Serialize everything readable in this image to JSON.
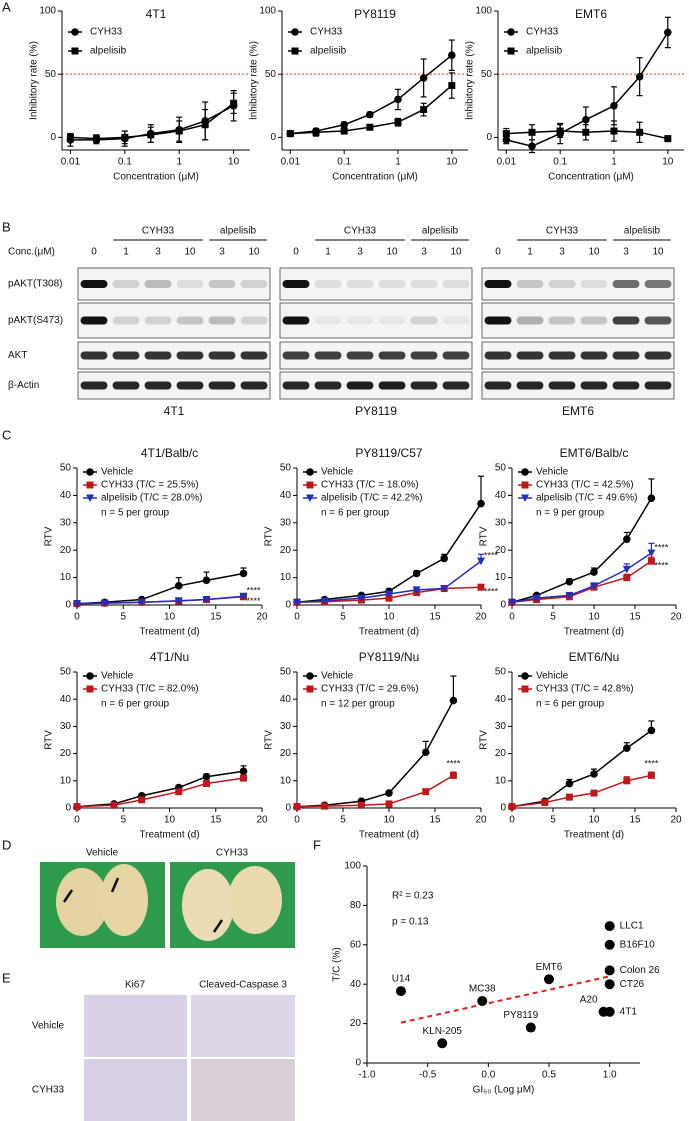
{
  "panel_labels": [
    "A",
    "B",
    "C",
    "D",
    "E",
    "F"
  ],
  "chart_data": [
    {
      "type": "line",
      "title": "4T1",
      "xscale": "log",
      "x": [
        0.01,
        0.03,
        0.1,
        0.3,
        1,
        3,
        10
      ],
      "xlim": [
        0.007,
        20
      ],
      "xticks": [
        0.01,
        0.1,
        1,
        10
      ],
      "ylim": [
        -10,
        100
      ],
      "yticks": [
        0,
        50,
        100
      ],
      "xlabel": "Concentration (μM)",
      "ylabel": "Inhibitory rate (%)",
      "reference_line": 50,
      "reference_color": "#e8392f",
      "error_direction": "both",
      "series": [
        {
          "name": "CYH33",
          "color": "#000000",
          "marker": "circle",
          "values": [
            -2,
            -2,
            -1,
            3,
            6,
            13,
            25
          ],
          "errors": [
            5,
            3,
            6,
            7,
            10,
            15,
            12
          ]
        },
        {
          "name": "alpelisib",
          "color": "#000000",
          "marker": "square",
          "values": [
            0,
            -1,
            0,
            2,
            5,
            10,
            27
          ],
          "errors": [
            3,
            3,
            5,
            6,
            8,
            12,
            8
          ]
        }
      ]
    },
    {
      "type": "line",
      "title": "PY8119",
      "xscale": "log",
      "x": [
        0.01,
        0.03,
        0.1,
        0.3,
        1,
        3,
        10
      ],
      "xlim": [
        0.007,
        20
      ],
      "xticks": [
        0.01,
        0.1,
        1,
        10
      ],
      "ylim": [
        -10,
        100
      ],
      "yticks": [
        0,
        50,
        100
      ],
      "xlabel": "Concentration (μM)",
      "ylabel": "Inhibitory rate (%)",
      "reference_line": 50,
      "reference_color": "#e8392f",
      "error_direction": "both",
      "series": [
        {
          "name": "CYH33",
          "color": "#000000",
          "marker": "circle",
          "values": [
            3,
            5,
            10,
            18,
            30,
            47,
            65
          ],
          "errors": [
            2,
            2,
            2,
            2,
            8,
            15,
            12
          ]
        },
        {
          "name": "alpelisib",
          "color": "#000000",
          "marker": "square",
          "values": [
            3,
            4,
            5,
            8,
            12,
            22,
            41
          ],
          "errors": [
            2,
            3,
            2,
            2,
            3,
            5,
            10
          ]
        }
      ]
    },
    {
      "type": "line",
      "title": "EMT6",
      "xscale": "log",
      "x": [
        0.01,
        0.03,
        0.1,
        0.3,
        1,
        3,
        10
      ],
      "xlim": [
        0.007,
        20
      ],
      "xticks": [
        0.01,
        0.1,
        1,
        10
      ],
      "ylim": [
        -10,
        100
      ],
      "yticks": [
        0,
        50,
        100
      ],
      "xlabel": "Concentration (μM)",
      "ylabel": "Inhibitory rate (%)",
      "reference_line": 50,
      "reference_color": "#e8392f",
      "error_direction": "both",
      "series": [
        {
          "name": "CYH33",
          "color": "#000000",
          "marker": "circle",
          "values": [
            -2,
            -7,
            3,
            14,
            25,
            48,
            83
          ],
          "errors": [
            3,
            5,
            8,
            10,
            15,
            15,
            12
          ]
        },
        {
          "name": "alpelisib",
          "color": "#000000",
          "marker": "square",
          "values": [
            3,
            4,
            5,
            4,
            5,
            4,
            -1
          ],
          "errors": [
            4,
            6,
            5,
            6,
            8,
            8,
            2
          ]
        }
      ]
    },
    {
      "type": "line",
      "title": "4T1/Balb/c",
      "x": [
        0,
        3,
        7,
        11,
        14,
        18
      ],
      "xlim": [
        0,
        20
      ],
      "xticks": [
        0,
        5,
        10,
        15,
        20
      ],
      "ylim": [
        0,
        50
      ],
      "yticks": [
        0,
        10,
        20,
        30,
        40,
        50
      ],
      "xlabel": "Treatment (d)",
      "ylabel": "RTV",
      "error_direction": "up",
      "note": "n = 5 per group",
      "series": [
        {
          "name": "Vehicle",
          "color": "#000000",
          "marker": "circle",
          "values": [
            0.5,
            1,
            2,
            7,
            9,
            11.5
          ],
          "errors": [
            0,
            0.3,
            0.5,
            3,
            3,
            2
          ]
        },
        {
          "name": "CYH33 (T/C = 25.5%)",
          "color": "#c0171c",
          "marker": "square",
          "values": [
            0.5,
            0.7,
            1,
            1.5,
            2,
            3
          ],
          "errors": [
            0,
            0.2,
            0.3,
            0.3,
            0.5,
            0.5
          ],
          "significance": "****"
        },
        {
          "name": "alpelisib (T/C = 28.0%)",
          "color": "#1f2fbf",
          "marker": "triangle-down",
          "values": [
            0.5,
            0.7,
            1,
            1.5,
            2,
            3.2
          ],
          "errors": [
            0,
            0.2,
            0.3,
            0.4,
            0.5,
            0.8
          ],
          "significance": "****"
        }
      ]
    },
    {
      "type": "line",
      "title": "PY8119/C57",
      "x": [
        0,
        3,
        7,
        10,
        13,
        16,
        20
      ],
      "xlim": [
        0,
        20
      ],
      "xticks": [
        0,
        5,
        10,
        15,
        20
      ],
      "ylim": [
        0,
        50
      ],
      "yticks": [
        0,
        10,
        20,
        30,
        40,
        50
      ],
      "xlabel": "Treatment (d)",
      "ylabel": "RTV",
      "error_direction": "up",
      "note": "n = 6 per group",
      "series": [
        {
          "name": "Vehicle",
          "color": "#000000",
          "marker": "circle",
          "values": [
            1,
            2,
            3.5,
            5,
            11.5,
            17,
            37
          ],
          "errors": [
            0,
            0.3,
            0.5,
            0.8,
            1,
            1.5,
            10
          ]
        },
        {
          "name": "CYH33 (T/C = 18.0%)",
          "color": "#c0171c",
          "marker": "square",
          "values": [
            1,
            1.2,
            1.8,
            2.5,
            4.5,
            6,
            6.5
          ],
          "errors": [
            0,
            0.2,
            0.3,
            0.4,
            0.5,
            0.5,
            0.8
          ],
          "significance": "****"
        },
        {
          "name": "alpelisib (T/C = 42.2%)",
          "color": "#1f2fbf",
          "marker": "triangle-down",
          "values": [
            1,
            1.5,
            2.5,
            4,
            5.5,
            6,
            16
          ],
          "errors": [
            0,
            0.2,
            0.3,
            0.5,
            0.7,
            1,
            2.5
          ],
          "significance": "****"
        }
      ]
    },
    {
      "type": "line",
      "title": "EMT6/Balb/c",
      "x": [
        0,
        3,
        7,
        10,
        14,
        17
      ],
      "xlim": [
        0,
        20
      ],
      "xticks": [
        0,
        5,
        10,
        15,
        20
      ],
      "ylim": [
        0,
        50
      ],
      "yticks": [
        0,
        10,
        20,
        30,
        40,
        50
      ],
      "xlabel": "Treatment (d)",
      "ylabel": "RTV",
      "error_direction": "up",
      "note": "n = 9 per group",
      "series": [
        {
          "name": "Vehicle",
          "color": "#000000",
          "marker": "circle",
          "values": [
            1,
            3.5,
            8.5,
            12,
            24,
            39
          ],
          "errors": [
            0,
            0.5,
            1,
            1.5,
            2.5,
            7
          ]
        },
        {
          "name": "CYH33 (T/C = 42.5%)",
          "color": "#c0171c",
          "marker": "square",
          "values": [
            1,
            2,
            3,
            6.5,
            10,
            16
          ],
          "errors": [
            0,
            0.3,
            0.5,
            0.8,
            1.2,
            1.5
          ],
          "significance": "****"
        },
        {
          "name": "alpelisib (T/C = 49.6%)",
          "color": "#1f2fbf",
          "marker": "triangle-down",
          "values": [
            1,
            2.5,
            3.5,
            7,
            13,
            19
          ],
          "errors": [
            0,
            0.3,
            0.5,
            1,
            2,
            3.5
          ],
          "significance": "****"
        }
      ]
    },
    {
      "type": "line",
      "title": "4T1/Nu",
      "x": [
        0,
        4,
        7,
        11,
        14,
        18
      ],
      "xlim": [
        0,
        20
      ],
      "xticks": [
        0,
        5,
        10,
        15,
        20
      ],
      "ylim": [
        0,
        50
      ],
      "yticks": [
        0,
        10,
        20,
        30,
        40,
        50
      ],
      "xlabel": "Treatment (d)",
      "ylabel": "RTV",
      "error_direction": "up",
      "note": "n = 6 per group",
      "series": [
        {
          "name": "Vehicle",
          "color": "#000000",
          "marker": "circle",
          "values": [
            0.5,
            1.5,
            4.5,
            7.5,
            11.5,
            13.5
          ],
          "errors": [
            0,
            0.3,
            0.5,
            0.8,
            1,
            2
          ]
        },
        {
          "name": "CYH33 (T/C = 82.0%)",
          "color": "#c0171c",
          "marker": "square",
          "values": [
            0.5,
            1,
            3,
            6,
            9,
            11
          ],
          "errors": [
            0,
            0.2,
            0.4,
            0.6,
            0.8,
            1
          ]
        }
      ]
    },
    {
      "type": "line",
      "title": "PY8119/Nu",
      "x": [
        0,
        3,
        7,
        10,
        14,
        17
      ],
      "xlim": [
        0,
        20
      ],
      "xticks": [
        0,
        5,
        10,
        15,
        20
      ],
      "ylim": [
        0,
        50
      ],
      "yticks": [
        0,
        10,
        20,
        30,
        40,
        50
      ],
      "xlabel": "Treatment (d)",
      "ylabel": "RTV",
      "error_direction": "up",
      "note": "n = 12 per group",
      "series": [
        {
          "name": "Vehicle",
          "color": "#000000",
          "marker": "circle",
          "values": [
            0.5,
            1,
            2.5,
            5.5,
            20.5,
            39.5
          ],
          "errors": [
            0,
            0.2,
            0.4,
            0.8,
            4,
            9
          ]
        },
        {
          "name": "CYH33 (T/C = 29.6%)",
          "color": "#c0171c",
          "marker": "square",
          "values": [
            0.5,
            0.7,
            1,
            1.5,
            6,
            12
          ],
          "errors": [
            0,
            0.1,
            0.2,
            0.3,
            0.6,
            1.2
          ],
          "significance": "****"
        }
      ]
    },
    {
      "type": "line",
      "title": "EMT6/Nu",
      "x": [
        0,
        4,
        7,
        10,
        14,
        17
      ],
      "xlim": [
        0,
        20
      ],
      "xticks": [
        0,
        5,
        10,
        15,
        20
      ],
      "ylim": [
        0,
        50
      ],
      "yticks": [
        0,
        10,
        20,
        30,
        40,
        50
      ],
      "xlabel": "Treatment (d)",
      "ylabel": "RTV",
      "error_direction": "up",
      "note": "n = 6 per group",
      "series": [
        {
          "name": "Vehicle",
          "color": "#000000",
          "marker": "circle",
          "values": [
            0.5,
            2.5,
            9,
            12.5,
            22,
            28.5
          ],
          "errors": [
            0,
            0.5,
            1.5,
            1.8,
            2,
            3.5
          ]
        },
        {
          "name": "CYH33 (T/C = 42.8%)",
          "color": "#c0171c",
          "marker": "square",
          "values": [
            0.5,
            2,
            4,
            5.5,
            10,
            12
          ],
          "errors": [
            0,
            0.3,
            0.5,
            0.6,
            1.5,
            1.2
          ],
          "significance": "****"
        }
      ]
    },
    {
      "type": "scatter",
      "x": [
        -0.72,
        -0.38,
        -0.05,
        0.35,
        0.5,
        0.95,
        1.0,
        1.0,
        1.0,
        1.0,
        1.0
      ],
      "values": [
        36.5,
        10,
        31.5,
        18,
        42.5,
        26,
        26,
        69.5,
        60,
        47,
        40
      ],
      "labels": [
        "U14",
        "KLN-205",
        "MC38",
        "PY8119",
        "EMT6",
        "A20",
        "4T1",
        "LLC1",
        "B16F10",
        "Colon 26",
        "CT26"
      ],
      "color": "#000000",
      "xlim": [
        -1,
        1.25
      ],
      "xticks": [
        {
          "value": -1,
          "label": "-1.0"
        },
        {
          "value": -0.5,
          "label": "-0.5"
        },
        {
          "value": 0,
          "label": "0.0"
        },
        {
          "value": 0.5,
          "label": "0.5"
        },
        {
          "value": 1,
          "label": "1.0"
        }
      ],
      "ylim": [
        0,
        100
      ],
      "yticks": [
        0,
        20,
        40,
        60,
        80,
        100
      ],
      "xlabel": "GI₅₀ (Log μM)",
      "ylabel": "T/C (%)",
      "annotations": [
        "R² = 0.23",
        "p = 0.13"
      ],
      "trendline": {
        "x": [
          -0.72,
          1.0
        ],
        "values": [
          20.5,
          44
        ],
        "color": "#e02020"
      }
    }
  ],
  "blot": {
    "conc_label": "Conc.(μM)",
    "treatments": [
      "CYH33",
      "alpelisib"
    ],
    "doses": [
      "0",
      "1",
      "3",
      "10",
      "3",
      "10"
    ],
    "rows": [
      "pAKT(T308)",
      "pAKT(S473)",
      "AKT",
      "β-Actin"
    ],
    "cells": [
      "4T1",
      "PY8119",
      "EMT6"
    ],
    "intensity": [
      [
        [
          1,
          0.15,
          0.25,
          0.1,
          0.2,
          0.15
        ],
        [
          1,
          0.15,
          0.15,
          0.2,
          0.25,
          0.15
        ],
        [
          0.85,
          0.85,
          0.85,
          0.85,
          0.85,
          0.85
        ],
        [
          0.9,
          0.9,
          0.9,
          0.9,
          0.9,
          0.9
        ]
      ],
      [
        [
          1,
          0.1,
          0.1,
          0.1,
          0.1,
          0.1
        ],
        [
          1,
          0.05,
          0.05,
          0.05,
          0.15,
          0.05
        ],
        [
          0.8,
          0.8,
          0.8,
          0.8,
          0.8,
          0.8
        ],
        [
          0.9,
          0.9,
          0.95,
          0.95,
          0.9,
          0.9
        ]
      ],
      [
        [
          1,
          0.2,
          0.15,
          0.1,
          0.6,
          0.55
        ],
        [
          1,
          0.3,
          0.2,
          0.2,
          0.8,
          0.7
        ],
        [
          0.85,
          0.85,
          0.85,
          0.85,
          0.85,
          0.85
        ],
        [
          0.9,
          0.9,
          0.9,
          0.9,
          0.9,
          0.9
        ]
      ]
    ]
  },
  "lung_photos": {
    "labels": [
      "Vehicle",
      "CYH33"
    ]
  },
  "ihc": {
    "columns": [
      "Ki67",
      "Cleaved-Caspase 3"
    ],
    "rows": [
      "Vehicle",
      "CYH33"
    ]
  }
}
